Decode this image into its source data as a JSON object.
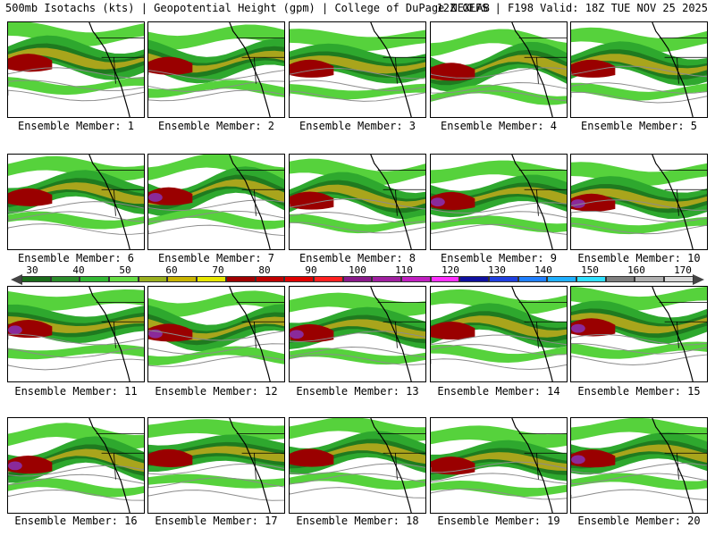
{
  "header": {
    "left": "500mb Isotachs (kts) | Geopotential Height (gpm) | College of DuPage NEXLAB",
    "right": "12Z GEFS | F198 Valid: 18Z TUE NOV 25 2025"
  },
  "members": [
    "Ensemble Member: 1",
    "Ensemble Member: 2",
    "Ensemble Member: 3",
    "Ensemble Member: 4",
    "Ensemble Member: 5",
    "Ensemble Member: 6",
    "Ensemble Member: 7",
    "Ensemble Member: 8",
    "Ensemble Member: 9",
    "Ensemble Member: 10",
    "Ensemble Member: 11",
    "Ensemble Member: 12",
    "Ensemble Member: 13",
    "Ensemble Member: 14",
    "Ensemble Member: 15",
    "Ensemble Member: 16",
    "Ensemble Member: 17",
    "Ensemble Member: 18",
    "Ensemble Member: 19",
    "Ensemble Member: 20"
  ],
  "colorbar": {
    "ticks": [
      "30",
      "40",
      "50",
      "60",
      "70",
      "80",
      "90",
      "100",
      "110",
      "120",
      "130",
      "140",
      "150",
      "160",
      "170"
    ],
    "colors": [
      "#1b6b1b",
      "#2a8c2a",
      "#33b833",
      "#66dd44",
      "#9ab01e",
      "#c8b400",
      "#e6e600",
      "#a00000",
      "#c00000",
      "#e00000",
      "#ff2020",
      "#8a1a8a",
      "#a020a0",
      "#c020c0",
      "#ff30ff",
      "#1010a0",
      "#2040e0",
      "#2080ff",
      "#20b0ff",
      "#30e0ff",
      "#808080",
      "#b0b0b0",
      "#d8d8d8"
    ]
  },
  "palette": {
    "green_dark": "#1f7a1f",
    "green": "#2ea82e",
    "green_light": "#56d23c",
    "olive": "#a9a51c",
    "yellow": "#e3d200",
    "red_dark": "#9a0000",
    "red": "#cc1010",
    "purple": "#8a2a9a",
    "contour": "#8c8c8c",
    "coast": "#000000"
  }
}
